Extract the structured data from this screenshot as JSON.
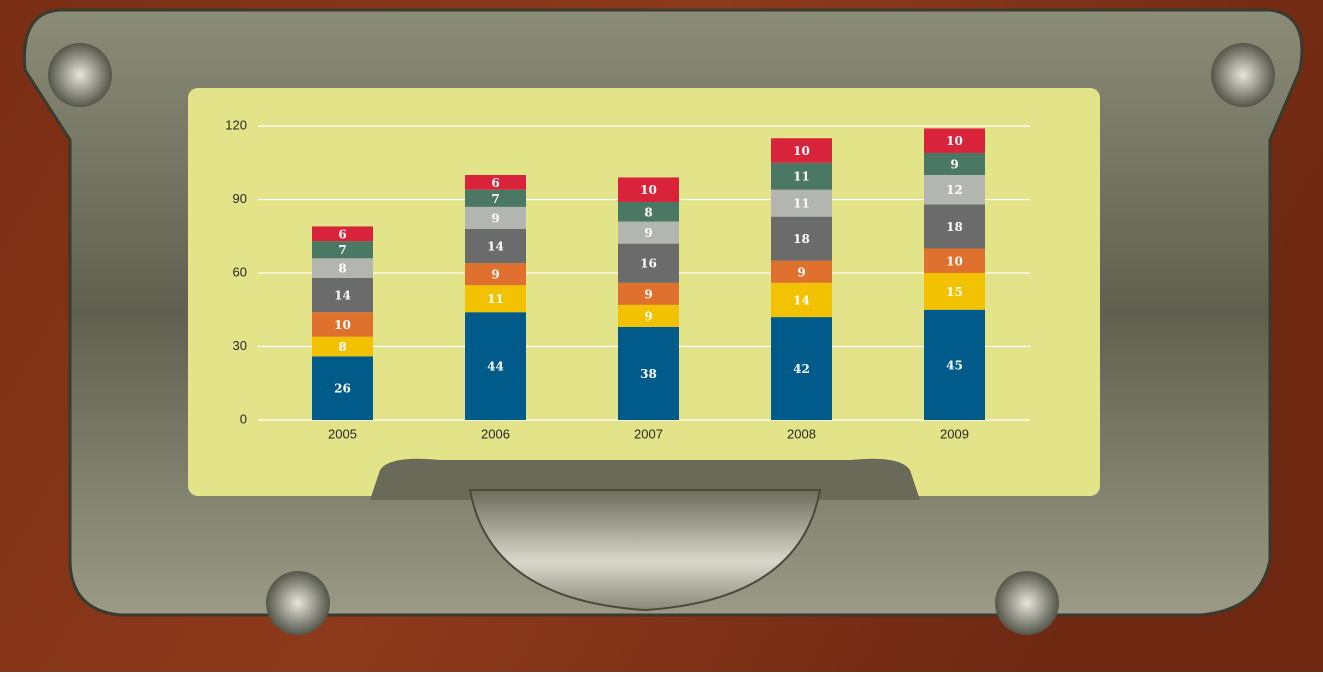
{
  "chart_data": {
    "type": "stacked-bar",
    "categories": [
      "2005",
      "2006",
      "2007",
      "2008",
      "2009"
    ],
    "series": [
      {
        "color": "#005a8a",
        "values": [
          26,
          44,
          38,
          42,
          45
        ]
      },
      {
        "color": "#f2c200",
        "values": [
          8,
          11,
          9,
          14,
          15
        ]
      },
      {
        "color": "#e0702e",
        "values": [
          10,
          9,
          9,
          9,
          10
        ]
      },
      {
        "color": "#6b6b6b",
        "values": [
          14,
          14,
          16,
          18,
          18
        ]
      },
      {
        "color": "#b3b5b1",
        "values": [
          8,
          9,
          9,
          11,
          12
        ]
      },
      {
        "color": "#4b7864",
        "values": [
          7,
          7,
          8,
          11,
          9
        ]
      },
      {
        "color": "#d9233b",
        "values": [
          6,
          6,
          10,
          10,
          10
        ]
      }
    ],
    "ylim": [
      0,
      120
    ],
    "yticks": [
      0,
      30,
      60,
      90,
      120
    ],
    "grid": true
  }
}
